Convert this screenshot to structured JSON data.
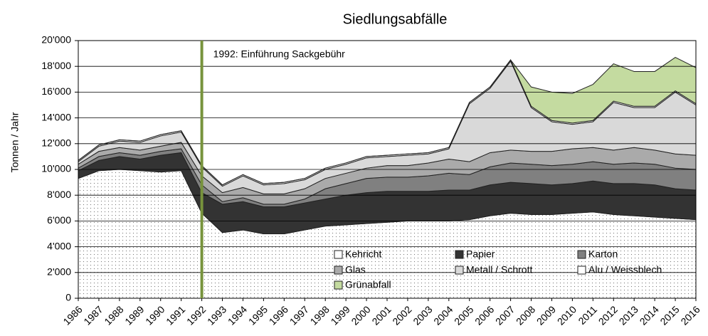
{
  "chart_data": {
    "type": "stacked_area",
    "title": "Siedlungsabfälle",
    "y_label": "Tonnen / Jahr",
    "annotation": {
      "text": "1992: Einführung Sackgebühr",
      "x": "1992",
      "color": "#77933c"
    },
    "categories": [
      "1986",
      "1987",
      "1988",
      "1989",
      "1990",
      "1991",
      "1992",
      "1993",
      "1994",
      "1995",
      "1996",
      "1997",
      "1998",
      "1999",
      "2000",
      "2001",
      "2002",
      "2003",
      "2004",
      "2005",
      "2006",
      "2007",
      "2008",
      "2009",
      "2010",
      "2011",
      "2012",
      "2013",
      "2014",
      "2015",
      "2016"
    ],
    "series": [
      {
        "name": "Kehricht",
        "color": "#ffffff",
        "pattern": "dots",
        "values": [
          9300,
          9900,
          10000,
          9900,
          9800,
          9900,
          6600,
          5100,
          5300,
          5000,
          5000,
          5300,
          5600,
          5700,
          5800,
          5900,
          6000,
          6000,
          6000,
          6100,
          6400,
          6600,
          6500,
          6500,
          6600,
          6700,
          6500,
          6400,
          6300,
          6200,
          6100
        ]
      },
      {
        "name": "Papier",
        "color": "#333333",
        "values": [
          600,
          800,
          1000,
          900,
          1300,
          1400,
          1600,
          2200,
          2200,
          2100,
          2100,
          2100,
          2100,
          2300,
          2400,
          2400,
          2300,
          2300,
          2400,
          2300,
          2400,
          2400,
          2400,
          2300,
          2300,
          2400,
          2400,
          2500,
          2500,
          2300,
          2300
        ]
      },
      {
        "name": "Karton",
        "color": "#808080",
        "values": [
          200,
          300,
          300,
          300,
          300,
          300,
          600,
          200,
          300,
          200,
          200,
          300,
          800,
          900,
          1100,
          1100,
          1100,
          1200,
          1300,
          1200,
          1400,
          1500,
          1500,
          1500,
          1500,
          1500,
          1500,
          1600,
          1600,
          1600,
          1600
        ]
      },
      {
        "name": "Glas",
        "color": "#aaaaaa",
        "values": [
          300,
          400,
          400,
          400,
          400,
          500,
          700,
          700,
          800,
          800,
          800,
          800,
          800,
          800,
          800,
          900,
          900,
          1000,
          1100,
          1000,
          1100,
          1000,
          1000,
          1100,
          1200,
          1100,
          1100,
          1200,
          1100,
          1100,
          1100
        ]
      },
      {
        "name": "Metall / Schrott",
        "color": "#d9d9d9",
        "values": [
          200,
          400,
          500,
          600,
          800,
          800,
          700,
          500,
          900,
          700,
          800,
          700,
          700,
          700,
          800,
          700,
          800,
          700,
          800,
          4500,
          5000,
          6900,
          3400,
          2300,
          1900,
          2000,
          3700,
          3100,
          3300,
          4800,
          3900
        ]
      },
      {
        "name": "Alu / Weissblech",
        "color": "#ffffff",
        "values": [
          100,
          100,
          100,
          100,
          100,
          100,
          100,
          100,
          100,
          100,
          100,
          100,
          100,
          100,
          100,
          100,
          100,
          100,
          100,
          100,
          100,
          100,
          100,
          100,
          100,
          100,
          100,
          100,
          100,
          100,
          100
        ]
      },
      {
        "name": "Grünabfall",
        "color": "#c4dba0",
        "values": [
          0,
          0,
          0,
          0,
          0,
          0,
          0,
          0,
          0,
          0,
          0,
          0,
          0,
          0,
          0,
          0,
          0,
          0,
          0,
          0,
          0,
          0,
          1500,
          2200,
          2300,
          2800,
          2900,
          2700,
          2700,
          2600,
          2800
        ]
      }
    ],
    "ylim": [
      0,
      20000
    ],
    "yticks": [
      0,
      {
        "value": 2000,
        "label": "2'000"
      },
      {
        "value": 4000,
        "label": "4'000"
      },
      {
        "value": 6000,
        "label": "6'000"
      },
      {
        "value": 8000,
        "label": "8'000"
      },
      {
        "value": 10000,
        "label": "10'000"
      },
      {
        "value": 12000,
        "label": "12'000"
      },
      {
        "value": 14000,
        "label": "14'000"
      },
      {
        "value": 16000,
        "label": "16'000"
      },
      {
        "value": 18000,
        "label": "18'000"
      },
      {
        "value": 20000,
        "label": "20'000"
      }
    ],
    "grid": true
  }
}
